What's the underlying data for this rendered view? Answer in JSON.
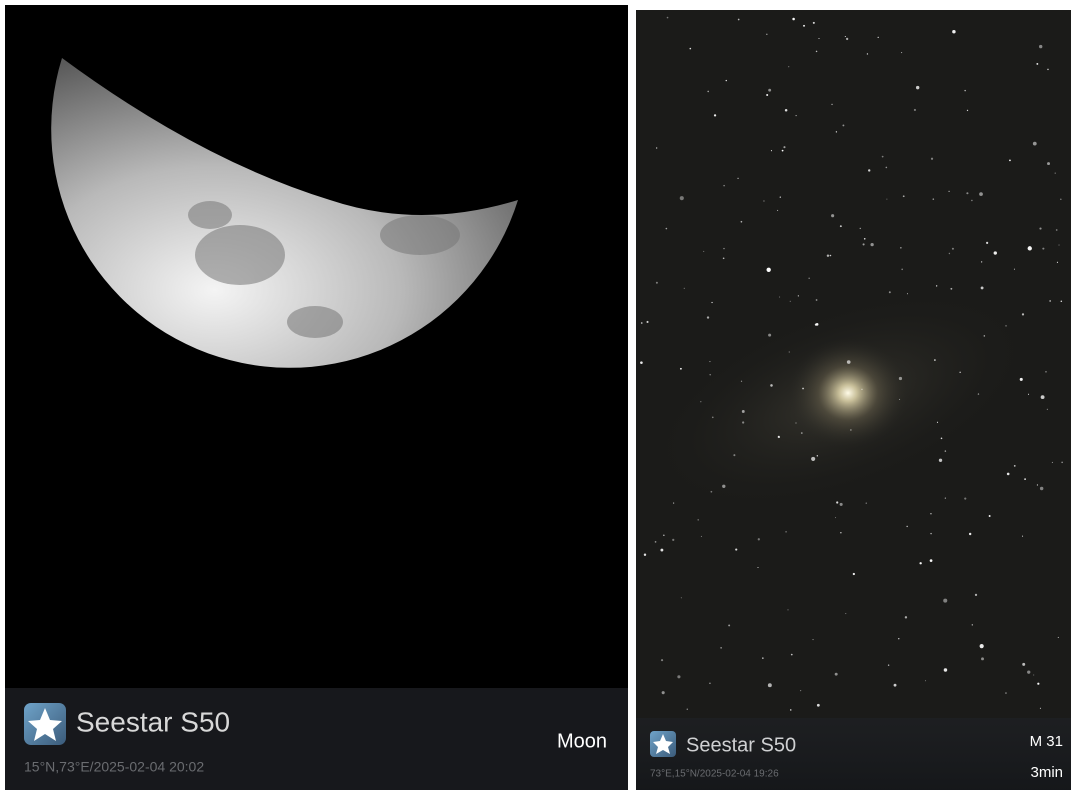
{
  "left": {
    "brand": "Seestar S50",
    "location_time": "15°N,73°E/2025-02-04 20:02",
    "target": "Moon"
  },
  "right": {
    "brand": "Seestar S50",
    "location_time": "73°E,15°N/2025-02-04 19:26",
    "target": "M 31",
    "exposure": "3min"
  }
}
